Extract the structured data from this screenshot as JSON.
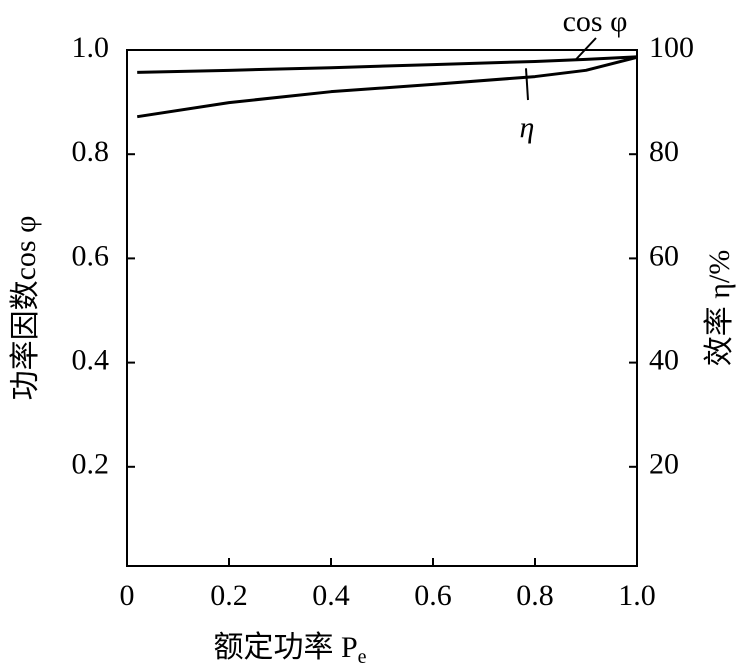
{
  "chart_data": {
    "type": "line",
    "xlabel": "额定功率 P",
    "xlabel_sub": "e",
    "ylabel": "功率因数cos φ",
    "y2label": "效率 η/%",
    "x": [
      0.02,
      0.2,
      0.4,
      0.6,
      0.8,
      0.9,
      1.0
    ],
    "series": [
      {
        "name": "cos φ",
        "color": "#000000",
        "values": [
          0.957,
          0.961,
          0.966,
          0.972,
          0.978,
          0.982,
          0.987
        ]
      },
      {
        "name": "η",
        "color": "#000000",
        "axis": "y2",
        "values": [
          87.2,
          89.9,
          92.0,
          93.4,
          94.9,
          96.1,
          98.6
        ]
      }
    ],
    "xlim": [
      0,
      1
    ],
    "xticks": [
      0,
      0.2,
      0.4,
      0.6,
      0.8,
      {
        "value": 1,
        "label": "1.0"
      }
    ],
    "ylim": [
      0,
      1
    ],
    "yticks": [
      0.2,
      0.4,
      0.6,
      0.8,
      {
        "value": 1,
        "label": "1.0"
      }
    ],
    "y2lim": [
      0,
      100
    ],
    "y2ticks": [
      20,
      40,
      60,
      80,
      100
    ],
    "grid": false
  }
}
